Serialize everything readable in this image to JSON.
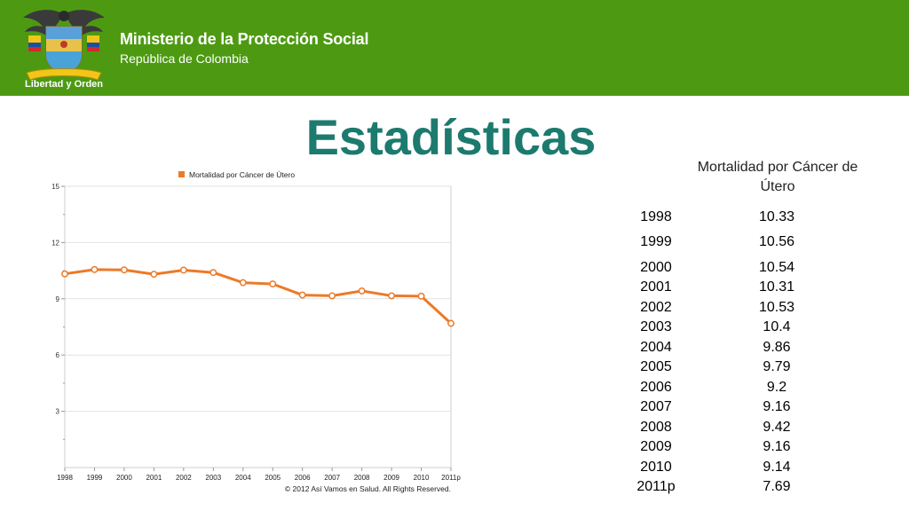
{
  "header": {
    "ministry": "Ministerio de la Protección Social",
    "republic": "República de Colombia",
    "logo_motto": "Libertad y Orden",
    "background_color": "#4d9a12"
  },
  "page_title": "Estadísticas",
  "table": {
    "value_header": "Mortalidad por Cáncer de Útero",
    "rows": [
      {
        "year": "1998",
        "value": "10.33"
      },
      {
        "year": "1999",
        "value": "10.56"
      },
      {
        "year": "2000",
        "value": "10.54"
      },
      {
        "year": "2001",
        "value": "10.31"
      },
      {
        "year": "2002",
        "value": "10.53"
      },
      {
        "year": "2003",
        "value": "10.4"
      },
      {
        "year": "2004",
        "value": "9.86"
      },
      {
        "year": "2005",
        "value": "9.79"
      },
      {
        "year": "2006",
        "value": "9.2"
      },
      {
        "year": "2007",
        "value": "9.16"
      },
      {
        "year": "2008",
        "value": "9.42"
      },
      {
        "year": "2009",
        "value": "9.16"
      },
      {
        "year": "2010",
        "value": "9.14"
      },
      {
        "year": "2011p",
        "value": "7.69"
      }
    ]
  },
  "chart_data": {
    "type": "line",
    "categories": [
      "1998",
      "1999",
      "2000",
      "2001",
      "2002",
      "2003",
      "2004",
      "2005",
      "2006",
      "2007",
      "2008",
      "2009",
      "2010",
      "2011p"
    ],
    "series": [
      {
        "name": "Mortalidad por Cáncer de Útero",
        "values": [
          10.33,
          10.56,
          10.54,
          10.31,
          10.53,
          10.4,
          9.86,
          9.79,
          9.2,
          9.16,
          9.42,
          9.16,
          9.14,
          7.69
        ],
        "color": "#ec7a28"
      }
    ],
    "ylim": [
      0,
      15
    ],
    "yticks": [
      3,
      6,
      9,
      12,
      15
    ],
    "grid": true,
    "legend_position": "top",
    "credit": "© 2012 Así Vamos en Salud. All Rights Reserved."
  }
}
